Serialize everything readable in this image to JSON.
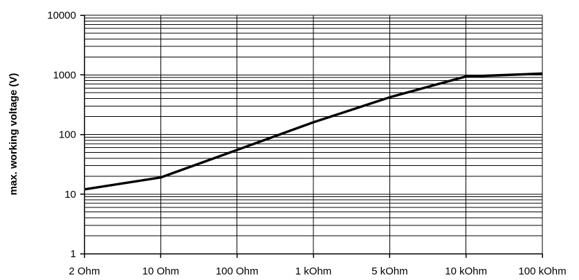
{
  "chart_data": {
    "type": "line",
    "title": "",
    "xlabel": "",
    "ylabel": "max. working voltage (V)",
    "y_scale": "log",
    "ylim": [
      1,
      10000
    ],
    "y_ticks": [
      "1",
      "10",
      "100",
      "1000",
      "10000"
    ],
    "categories": [
      "2 Ohm",
      "10 Ohm",
      "100 Ohm",
      "1 kOhm",
      "5 kOhm",
      "10 kOhm",
      "100 kOhm"
    ],
    "grid": "horizontal minor and major, vertical at categories",
    "series": [
      {
        "color": "#000000",
        "values": [
          12,
          19,
          55,
          160,
          420,
          940,
          1050
        ]
      }
    ]
  }
}
